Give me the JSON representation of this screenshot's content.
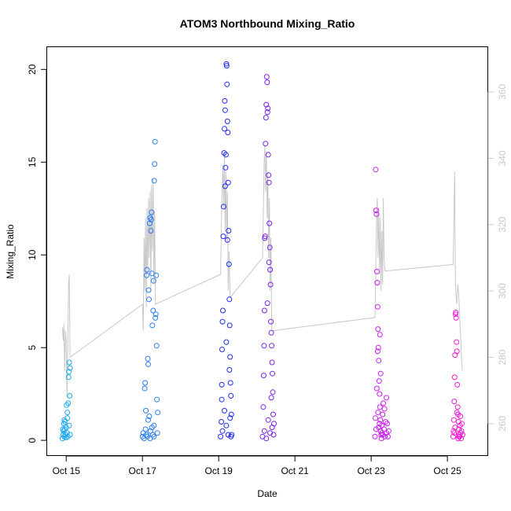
{
  "chart_data": {
    "type": "scatter",
    "title": "ATOM3 Northbound Mixing_Ratio",
    "xlabel": "Date",
    "ylabel": "Mixing_Ratio",
    "y2label": "",
    "x_ticks": [
      {
        "x": 14.8,
        "label": "Oct 15"
      },
      {
        "x": 16.8,
        "label": "Oct 17"
      },
      {
        "x": 18.8,
        "label": "Oct 19"
      },
      {
        "x": 20.8,
        "label": "Oct 21"
      },
      {
        "x": 22.8,
        "label": "Oct 23"
      },
      {
        "x": 24.8,
        "label": "Oct 25"
      }
    ],
    "xlim": [
      14.3,
      25.85
    ],
    "ylim": [
      -0.8,
      21.2
    ],
    "y_ticks": [
      0,
      5,
      10,
      15,
      20
    ],
    "y2lim": [
      250.5,
      373.5
    ],
    "y2_ticks": [
      260,
      280,
      300,
      320,
      340,
      360
    ],
    "grid": false,
    "series": [
      {
        "values_encoding": "[day_of_october, mixing_ratio]",
        "color": "#1aa7f0",
        "points": [
          [
            14.7,
            0.1
          ],
          [
            14.72,
            0.3
          ],
          [
            14.73,
            0.5
          ],
          [
            14.74,
            0.9
          ],
          [
            14.75,
            0.2
          ],
          [
            14.76,
            0.6
          ],
          [
            14.77,
            1.0
          ],
          [
            14.78,
            0.3
          ],
          [
            14.79,
            0.15
          ],
          [
            14.8,
            0.7
          ],
          [
            14.81,
            1.9
          ],
          [
            14.82,
            0.4
          ],
          [
            14.83,
            1.5
          ],
          [
            14.84,
            0.2
          ],
          [
            14.85,
            2.0
          ],
          [
            14.86,
            3.4
          ],
          [
            14.87,
            3.7
          ],
          [
            14.88,
            4.2
          ],
          [
            14.89,
            2.4
          ],
          [
            14.9,
            3.9
          ],
          [
            14.9,
            0.3
          ],
          [
            14.88,
            0.8
          ],
          [
            14.83,
            1.2
          ],
          [
            14.71,
            0.6
          ],
          [
            14.75,
            1.1
          ]
        ]
      },
      {
        "color": "#2a7ef0",
        "points": [
          [
            16.8,
            0.2
          ],
          [
            16.82,
            0.4
          ],
          [
            16.84,
            0.1
          ],
          [
            16.86,
            2.8
          ],
          [
            16.87,
            3.1
          ],
          [
            16.88,
            0.6
          ],
          [
            16.89,
            1.6
          ],
          [
            16.9,
            0.3
          ],
          [
            16.91,
            8.9
          ],
          [
            16.92,
            9.2
          ],
          [
            16.93,
            0.2
          ],
          [
            16.94,
            4.4
          ],
          [
            16.95,
            4.1
          ],
          [
            16.96,
            8.1
          ],
          [
            16.97,
            7.6
          ],
          [
            16.98,
            1.3
          ],
          [
            16.99,
            11.7
          ],
          [
            17.0,
            12.0
          ],
          [
            17.01,
            0.5
          ],
          [
            17.02,
            11.3
          ],
          [
            17.03,
            11.9
          ],
          [
            17.04,
            12.3
          ],
          [
            17.05,
            9.0
          ],
          [
            17.06,
            6.2
          ],
          [
            17.07,
            0.3
          ],
          [
            17.08,
            7.0
          ],
          [
            17.09,
            8.6
          ],
          [
            17.1,
            0.8
          ],
          [
            17.11,
            14.0
          ],
          [
            17.12,
            14.9
          ],
          [
            17.13,
            16.1
          ],
          [
            17.14,
            6.6
          ],
          [
            17.15,
            6.8
          ],
          [
            17.16,
            8.9
          ],
          [
            17.17,
            5.1
          ],
          [
            17.18,
            2.2
          ],
          [
            17.19,
            0.4
          ],
          [
            17.2,
            1.5
          ],
          [
            17.0,
            0.1
          ],
          [
            16.95,
            1.1
          ],
          [
            17.05,
            0.7
          ],
          [
            17.1,
            0.2
          ]
        ]
      },
      {
        "color": "#1f2bf0",
        "points": [
          [
            18.85,
            0.2
          ],
          [
            18.87,
            1.0
          ],
          [
            18.88,
            3.0
          ],
          [
            18.89,
            4.9
          ],
          [
            18.9,
            6.4
          ],
          [
            18.91,
            7.0
          ],
          [
            18.92,
            11.0
          ],
          [
            18.93,
            12.6
          ],
          [
            18.94,
            15.5
          ],
          [
            18.95,
            16.8
          ],
          [
            18.96,
            18.3
          ],
          [
            18.97,
            17.8
          ],
          [
            18.98,
            14.7
          ],
          [
            18.99,
            15.4
          ],
          [
            19.0,
            20.3
          ],
          [
            19.01,
            20.2
          ],
          [
            19.02,
            19.2
          ],
          [
            19.03,
            17.2
          ],
          [
            19.04,
            16.6
          ],
          [
            19.05,
            13.9
          ],
          [
            19.06,
            11.3
          ],
          [
            19.07,
            9.5
          ],
          [
            19.08,
            7.6
          ],
          [
            19.09,
            6.2
          ],
          [
            19.1,
            4.5
          ],
          [
            19.11,
            3.1
          ],
          [
            19.12,
            2.4
          ],
          [
            19.13,
            1.4
          ],
          [
            19.14,
            0.3
          ],
          [
            18.9,
            0.5
          ],
          [
            19.0,
            0.8
          ],
          [
            19.05,
            0.3
          ],
          [
            19.1,
            1.2
          ],
          [
            18.95,
            1.6
          ],
          [
            19.0,
            5.3
          ],
          [
            19.08,
            3.8
          ],
          [
            18.88,
            2.2
          ],
          [
            19.12,
            0.2
          ],
          [
            19.03,
            10.8
          ],
          [
            18.97,
            13.7
          ]
        ]
      },
      {
        "color": "#7a21f0",
        "points": [
          [
            19.95,
            0.2
          ],
          [
            19.97,
            1.8
          ],
          [
            19.98,
            3.5
          ],
          [
            19.99,
            5.1
          ],
          [
            20.0,
            7.0
          ],
          [
            20.01,
            10.9
          ],
          [
            20.02,
            11.0
          ],
          [
            20.03,
            16.0
          ],
          [
            20.04,
            17.4
          ],
          [
            20.05,
            18.1
          ],
          [
            20.06,
            19.6
          ],
          [
            20.07,
            19.3
          ],
          [
            20.08,
            17.7
          ],
          [
            20.09,
            17.9
          ],
          [
            20.1,
            15.4
          ],
          [
            20.11,
            14.3
          ],
          [
            20.12,
            13.9
          ],
          [
            20.13,
            11.7
          ],
          [
            20.14,
            10.4
          ],
          [
            20.15,
            9.2
          ],
          [
            20.16,
            8.4
          ],
          [
            20.17,
            6.4
          ],
          [
            20.18,
            5.8
          ],
          [
            20.19,
            5.1
          ],
          [
            20.2,
            4.2
          ],
          [
            20.21,
            3.6
          ],
          [
            20.22,
            2.6
          ],
          [
            20.23,
            1.4
          ],
          [
            20.24,
            0.3
          ],
          [
            20.25,
            0.9
          ],
          [
            20.0,
            0.5
          ],
          [
            20.05,
            0.1
          ],
          [
            20.1,
            1.1
          ],
          [
            20.15,
            0.4
          ],
          [
            20.2,
            0.7
          ],
          [
            20.08,
            7.4
          ],
          [
            20.12,
            9.6
          ],
          [
            20.18,
            2.3
          ]
        ]
      },
      {
        "color": "#c81ef0",
        "points": [
          [
            22.9,
            0.2
          ],
          [
            22.91,
            1.2
          ],
          [
            22.92,
            14.6
          ],
          [
            22.93,
            12.4
          ],
          [
            22.94,
            12.2
          ],
          [
            22.95,
            9.1
          ],
          [
            22.96,
            8.5
          ],
          [
            22.97,
            7.2
          ],
          [
            22.98,
            6.0
          ],
          [
            22.99,
            5.0
          ],
          [
            23.0,
            4.3
          ],
          [
            23.01,
            3.2
          ],
          [
            23.02,
            2.5
          ],
          [
            23.03,
            1.8
          ],
          [
            23.04,
            1.1
          ],
          [
            23.05,
            0.5
          ],
          [
            23.06,
            0.3
          ],
          [
            23.07,
            0.1
          ],
          [
            23.08,
            0.8
          ],
          [
            23.1,
            1.4
          ],
          [
            23.12,
            2.0
          ],
          [
            23.14,
            0.6
          ],
          [
            23.16,
            0.2
          ],
          [
            23.18,
            1.0
          ],
          [
            23.2,
            0.4
          ],
          [
            23.22,
            0.9
          ],
          [
            23.24,
            0.2
          ],
          [
            23.26,
            0.5
          ],
          [
            23.0,
            0.7
          ],
          [
            22.95,
            2.8
          ],
          [
            23.05,
            3.6
          ],
          [
            23.1,
            0.3
          ],
          [
            22.98,
            1.5
          ],
          [
            23.02,
            0.9
          ],
          [
            23.15,
            1.7
          ],
          [
            23.2,
            2.3
          ],
          [
            23.08,
            0.4
          ],
          [
            22.93,
            0.6
          ],
          [
            22.97,
            4.8
          ],
          [
            23.03,
            5.7
          ]
        ]
      },
      {
        "color": "#ee1cd2",
        "points": [
          [
            24.95,
            0.2
          ],
          [
            24.96,
            0.5
          ],
          [
            24.97,
            1.1
          ],
          [
            24.98,
            2.1
          ],
          [
            24.99,
            3.4
          ],
          [
            25.0,
            4.6
          ],
          [
            25.01,
            6.8
          ],
          [
            25.02,
            6.9
          ],
          [
            25.03,
            6.6
          ],
          [
            25.04,
            5.3
          ],
          [
            25.05,
            4.8
          ],
          [
            25.06,
            3.0
          ],
          [
            25.07,
            1.8
          ],
          [
            25.08,
            1.4
          ],
          [
            25.09,
            1.0
          ],
          [
            25.1,
            0.6
          ],
          [
            25.11,
            0.3
          ],
          [
            25.12,
            0.2
          ],
          [
            25.13,
            0.8
          ],
          [
            25.14,
            1.3
          ],
          [
            25.15,
            0.4
          ],
          [
            25.16,
            0.1
          ],
          [
            25.17,
            0.5
          ],
          [
            25.18,
            0.9
          ],
          [
            25.2,
            0.3
          ],
          [
            25.0,
            0.7
          ],
          [
            25.05,
            1.5
          ],
          [
            25.1,
            0.2
          ],
          [
            24.98,
            0.4
          ],
          [
            25.08,
            0.1
          ]
        ]
      }
    ],
    "secondary_line": {
      "color": "#c8c8c8",
      "axis": "right",
      "points": [
        [
          14.7,
          289
        ],
        [
          14.72,
          285
        ],
        [
          14.74,
          290
        ],
        [
          14.76,
          276
        ],
        [
          14.78,
          288
        ],
        [
          14.8,
          285
        ],
        [
          14.82,
          268
        ],
        [
          14.84,
          283
        ],
        [
          14.86,
          302
        ],
        [
          14.88,
          305
        ],
        [
          14.9,
          280
        ],
        [
          16.8,
          296
        ],
        [
          16.82,
          288
        ],
        [
          16.84,
          316
        ],
        [
          16.86,
          300
        ],
        [
          16.88,
          322
        ],
        [
          16.9,
          295
        ],
        [
          16.92,
          325
        ],
        [
          16.94,
          305
        ],
        [
          16.96,
          328
        ],
        [
          16.98,
          310
        ],
        [
          17.0,
          330
        ],
        [
          17.02,
          300
        ],
        [
          17.04,
          332
        ],
        [
          17.06,
          312
        ],
        [
          17.08,
          334
        ],
        [
          17.1,
          302
        ],
        [
          17.12,
          324
        ],
        [
          17.14,
          296
        ],
        [
          18.85,
          305
        ],
        [
          18.87,
          320
        ],
        [
          18.89,
          330
        ],
        [
          18.91,
          338
        ],
        [
          18.93,
          325
        ],
        [
          18.95,
          342
        ],
        [
          18.97,
          318
        ],
        [
          18.99,
          336
        ],
        [
          19.01,
          315
        ],
        [
          19.03,
          330
        ],
        [
          19.05,
          300
        ],
        [
          19.07,
          312
        ],
        [
          19.1,
          298
        ],
        [
          19.95,
          310
        ],
        [
          19.97,
          322
        ],
        [
          19.99,
          338
        ],
        [
          20.01,
          344
        ],
        [
          20.03,
          330
        ],
        [
          20.05,
          342
        ],
        [
          20.07,
          322
        ],
        [
          20.09,
          336
        ],
        [
          20.11,
          310
        ],
        [
          20.13,
          328
        ],
        [
          20.15,
          300
        ],
        [
          20.17,
          316
        ],
        [
          20.19,
          290
        ],
        [
          20.2,
          288
        ],
        [
          22.9,
          292
        ],
        [
          22.92,
          305
        ],
        [
          22.94,
          320
        ],
        [
          22.96,
          328
        ],
        [
          22.98,
          310
        ],
        [
          23.0,
          325
        ],
        [
          23.02,
          305
        ],
        [
          23.04,
          322
        ],
        [
          23.06,
          300
        ],
        [
          23.08,
          318
        ],
        [
          23.1,
          302
        ],
        [
          23.12,
          328
        ],
        [
          23.14,
          310
        ],
        [
          23.16,
          306
        ],
        [
          24.95,
          308
        ],
        [
          24.97,
          320
        ],
        [
          24.99,
          336
        ],
        [
          25.01,
          302
        ],
        [
          25.03,
          298
        ],
        [
          25.05,
          296
        ],
        [
          25.07,
          302
        ],
        [
          25.09,
          300
        ],
        [
          25.11,
          296
        ],
        [
          25.13,
          290
        ],
        [
          25.15,
          285
        ],
        [
          25.17,
          280
        ],
        [
          25.19,
          276
        ]
      ]
    }
  }
}
